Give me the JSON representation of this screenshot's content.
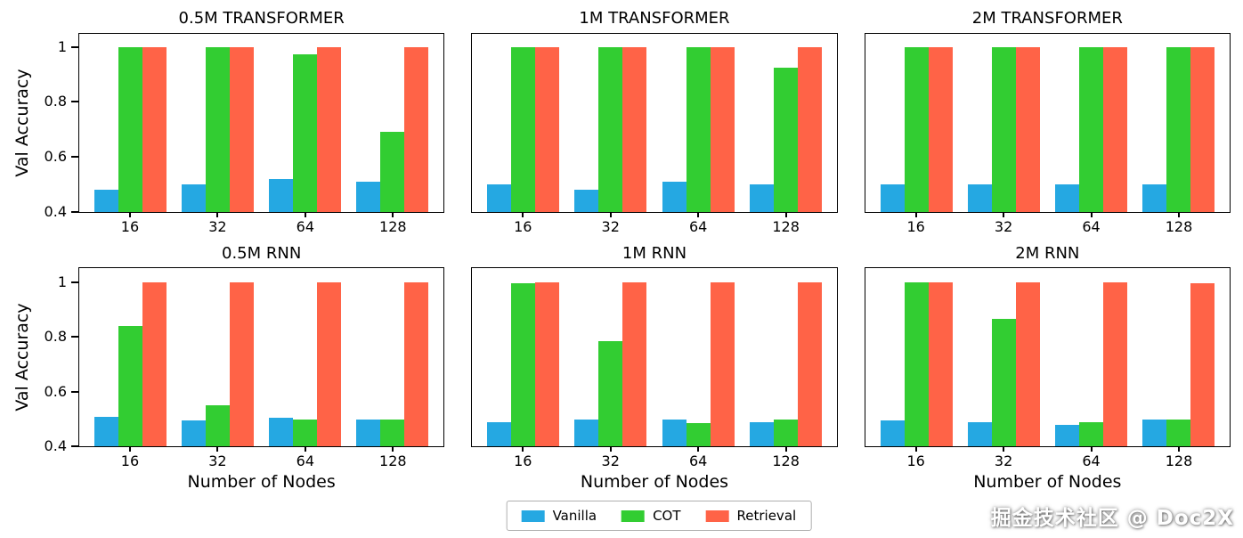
{
  "figure": {
    "background": "#ffffff",
    "ylabel": "Val Accuracy",
    "xlabel": "Number of Nodes",
    "ylim": [
      0.4,
      1.05
    ],
    "yticks": [
      1,
      0.8,
      0.6,
      0.4
    ],
    "ytick_labels": [
      "1",
      "0.8",
      "0.6",
      "0.4"
    ],
    "grid": false,
    "legend_position": "bottom-center"
  },
  "colors": {
    "vanilla": "#25A8E2",
    "cot": "#32CD32",
    "retrieval": "#FF6347",
    "axis": "#000000"
  },
  "legend": {
    "items": [
      {
        "label": "Vanilla",
        "color": "#25A8E2"
      },
      {
        "label": "COT",
        "color": "#32CD32"
      },
      {
        "label": "Retrieval",
        "color": "#FF6347"
      }
    ]
  },
  "watermark": {
    "text": "掘金技术社区 @ Doc2X"
  },
  "chart_data": [
    {
      "type": "bar",
      "title": "0.5M TRANSFORMER",
      "categories": [
        "16",
        "32",
        "64",
        "128"
      ],
      "series": [
        {
          "name": "Vanilla",
          "values": [
            0.48,
            0.5,
            0.52,
            0.51
          ]
        },
        {
          "name": "COT",
          "values": [
            1.0,
            1.0,
            0.975,
            0.69
          ]
        },
        {
          "name": "Retrieval",
          "values": [
            1.0,
            1.0,
            1.0,
            1.0
          ]
        }
      ],
      "ylim": [
        0.4,
        1.05
      ]
    },
    {
      "type": "bar",
      "title": "1M TRANSFORMER",
      "categories": [
        "16",
        "32",
        "64",
        "128"
      ],
      "series": [
        {
          "name": "Vanilla",
          "values": [
            0.5,
            0.48,
            0.51,
            0.5
          ]
        },
        {
          "name": "COT",
          "values": [
            1.0,
            1.0,
            1.0,
            0.925
          ]
        },
        {
          "name": "Retrieval",
          "values": [
            1.0,
            1.0,
            1.0,
            1.0
          ]
        }
      ],
      "ylim": [
        0.4,
        1.05
      ]
    },
    {
      "type": "bar",
      "title": "2M TRANSFORMER",
      "categories": [
        "16",
        "32",
        "64",
        "128"
      ],
      "series": [
        {
          "name": "Vanilla",
          "values": [
            0.5,
            0.5,
            0.5,
            0.5
          ]
        },
        {
          "name": "COT",
          "values": [
            1.0,
            1.0,
            1.0,
            1.0
          ]
        },
        {
          "name": "Retrieval",
          "values": [
            1.0,
            1.0,
            1.0,
            1.0
          ]
        }
      ],
      "ylim": [
        0.4,
        1.05
      ]
    },
    {
      "type": "bar",
      "title": "0.5M RNN",
      "categories": [
        "16",
        "32",
        "64",
        "128"
      ],
      "series": [
        {
          "name": "Vanilla",
          "values": [
            0.51,
            0.495,
            0.505,
            0.5
          ]
        },
        {
          "name": "COT",
          "values": [
            0.84,
            0.55,
            0.5,
            0.5
          ]
        },
        {
          "name": "Retrieval",
          "values": [
            1.0,
            1.0,
            1.0,
            1.0
          ]
        }
      ],
      "ylim": [
        0.4,
        1.05
      ]
    },
    {
      "type": "bar",
      "title": "1M RNN",
      "categories": [
        "16",
        "32",
        "64",
        "128"
      ],
      "series": [
        {
          "name": "Vanilla",
          "values": [
            0.49,
            0.5,
            0.5,
            0.49
          ]
        },
        {
          "name": "COT",
          "values": [
            0.995,
            0.785,
            0.485,
            0.5
          ]
        },
        {
          "name": "Retrieval",
          "values": [
            1.0,
            1.0,
            1.0,
            1.0
          ]
        }
      ],
      "ylim": [
        0.4,
        1.05
      ]
    },
    {
      "type": "bar",
      "title": "2M RNN",
      "categories": [
        "16",
        "32",
        "64",
        "128"
      ],
      "series": [
        {
          "name": "Vanilla",
          "values": [
            0.495,
            0.49,
            0.48,
            0.5
          ]
        },
        {
          "name": "COT",
          "values": [
            1.0,
            0.865,
            0.49,
            0.5
          ]
        },
        {
          "name": "Retrieval",
          "values": [
            1.0,
            1.0,
            1.0,
            0.995
          ]
        }
      ],
      "ylim": [
        0.4,
        1.05
      ]
    }
  ]
}
